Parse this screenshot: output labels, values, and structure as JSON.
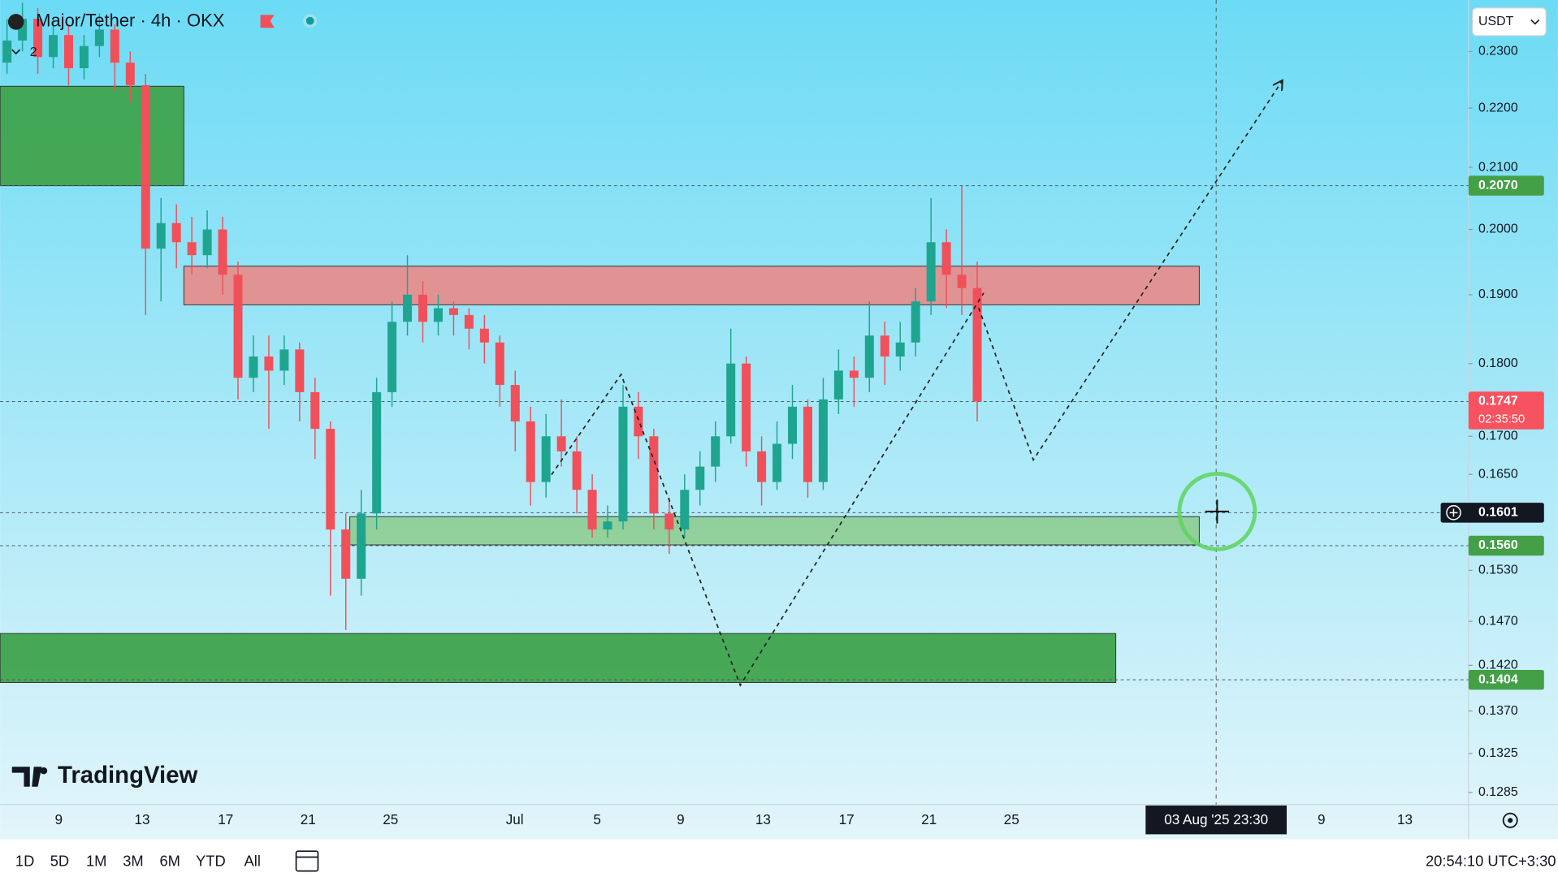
{
  "header": {
    "symbol": "Major/Tether · 4h · OKX",
    "indicator_count": "2"
  },
  "currency": "USDT",
  "chart": {
    "scale": "log",
    "ylim": [
      0.1273,
      0.2395
    ],
    "yticks": [
      {
        "value": 0.23,
        "label": "0.2300"
      },
      {
        "value": 0.22,
        "label": "0.2200"
      },
      {
        "value": 0.21,
        "label": "0.2100"
      },
      {
        "value": 0.2,
        "label": "0.2000"
      },
      {
        "value": 0.19,
        "label": "0.1900"
      },
      {
        "value": 0.18,
        "label": "0.1800"
      },
      {
        "value": 0.17,
        "label": "0.1700"
      },
      {
        "value": 0.165,
        "label": "0.1650"
      },
      {
        "value": 0.153,
        "label": "0.1530"
      },
      {
        "value": 0.147,
        "label": "0.1470"
      },
      {
        "value": 0.142,
        "label": "0.1420"
      },
      {
        "value": 0.137,
        "label": "0.1370"
      },
      {
        "value": 0.1325,
        "label": "0.1325"
      },
      {
        "value": 0.1285,
        "label": "0.1285"
      }
    ],
    "up_color": "#1fa58f",
    "down_color": "#f0505a",
    "candles": [
      [
        0.228,
        0.236,
        0.226,
        0.232
      ],
      [
        0.232,
        0.239,
        0.23,
        0.236
      ],
      [
        0.236,
        0.238,
        0.226,
        0.229
      ],
      [
        0.229,
        0.236,
        0.227,
        0.233
      ],
      [
        0.233,
        0.235,
        0.224,
        0.227
      ],
      [
        0.227,
        0.233,
        0.225,
        0.231
      ],
      [
        0.231,
        0.237,
        0.229,
        0.234
      ],
      [
        0.234,
        0.235,
        0.223,
        0.228
      ],
      [
        0.228,
        0.23,
        0.221,
        0.224
      ],
      [
        0.224,
        0.226,
        0.187,
        0.197
      ],
      [
        0.197,
        0.205,
        0.189,
        0.201
      ],
      [
        0.201,
        0.204,
        0.194,
        0.198
      ],
      [
        0.198,
        0.202,
        0.193,
        0.196
      ],
      [
        0.196,
        0.203,
        0.194,
        0.2
      ],
      [
        0.2,
        0.202,
        0.19,
        0.193
      ],
      [
        0.193,
        0.195,
        0.175,
        0.178
      ],
      [
        0.178,
        0.184,
        0.176,
        0.181
      ],
      [
        0.181,
        0.184,
        0.171,
        0.179
      ],
      [
        0.179,
        0.184,
        0.177,
        0.182
      ],
      [
        0.182,
        0.183,
        0.172,
        0.176
      ],
      [
        0.176,
        0.178,
        0.167,
        0.171
      ],
      [
        0.171,
        0.172,
        0.15,
        0.158
      ],
      [
        0.158,
        0.16,
        0.146,
        0.152
      ],
      [
        0.152,
        0.163,
        0.15,
        0.16
      ],
      [
        0.16,
        0.178,
        0.158,
        0.176
      ],
      [
        0.176,
        0.189,
        0.174,
        0.186
      ],
      [
        0.186,
        0.196,
        0.184,
        0.19
      ],
      [
        0.19,
        0.192,
        0.183,
        0.186
      ],
      [
        0.186,
        0.19,
        0.184,
        0.188
      ],
      [
        0.188,
        0.189,
        0.184,
        0.187
      ],
      [
        0.187,
        0.188,
        0.182,
        0.185
      ],
      [
        0.185,
        0.187,
        0.18,
        0.183
      ],
      [
        0.183,
        0.184,
        0.174,
        0.177
      ],
      [
        0.177,
        0.179,
        0.168,
        0.172
      ],
      [
        0.172,
        0.174,
        0.161,
        0.164
      ],
      [
        0.164,
        0.173,
        0.162,
        0.17
      ],
      [
        0.17,
        0.175,
        0.166,
        0.168
      ],
      [
        0.168,
        0.17,
        0.16,
        0.163
      ],
      [
        0.163,
        0.165,
        0.157,
        0.158
      ],
      [
        0.158,
        0.161,
        0.157,
        0.159
      ],
      [
        0.159,
        0.177,
        0.158,
        0.174
      ],
      [
        0.174,
        0.176,
        0.167,
        0.17
      ],
      [
        0.17,
        0.171,
        0.158,
        0.16
      ],
      [
        0.16,
        0.162,
        0.155,
        0.158
      ],
      [
        0.158,
        0.165,
        0.157,
        0.163
      ],
      [
        0.163,
        0.168,
        0.161,
        0.166
      ],
      [
        0.166,
        0.172,
        0.164,
        0.17
      ],
      [
        0.17,
        0.185,
        0.169,
        0.18
      ],
      [
        0.18,
        0.181,
        0.166,
        0.168
      ],
      [
        0.168,
        0.17,
        0.161,
        0.164
      ],
      [
        0.164,
        0.172,
        0.163,
        0.169
      ],
      [
        0.169,
        0.177,
        0.167,
        0.174
      ],
      [
        0.174,
        0.175,
        0.162,
        0.164
      ],
      [
        0.164,
        0.178,
        0.163,
        0.175
      ],
      [
        0.175,
        0.182,
        0.173,
        0.179
      ],
      [
        0.179,
        0.181,
        0.174,
        0.178
      ],
      [
        0.178,
        0.189,
        0.176,
        0.184
      ],
      [
        0.184,
        0.186,
        0.177,
        0.181
      ],
      [
        0.181,
        0.186,
        0.179,
        0.183
      ],
      [
        0.183,
        0.191,
        0.181,
        0.189
      ],
      [
        0.189,
        0.205,
        0.187,
        0.198
      ],
      [
        0.198,
        0.2,
        0.188,
        0.193
      ],
      [
        0.193,
        0.207,
        0.187,
        0.191
      ],
      [
        0.191,
        0.195,
        0.172,
        0.1747
      ]
    ],
    "zones": [
      {
        "top": 0.2238,
        "bottom": 0.207,
        "color": "#3fa34d"
      },
      {
        "top": 0.1943,
        "bottom": 0.1885,
        "color": "#e58e8e"
      },
      {
        "top": 0.1596,
        "bottom": 0.1561,
        "color": "#8fcf97"
      },
      {
        "top": 0.1456,
        "bottom": 0.1401,
        "color": "#3fa34d"
      }
    ],
    "levels": [
      {
        "value": 0.207,
        "label": "0.2070",
        "color": "#43a047"
      },
      {
        "value": 0.1747,
        "label": "0.1747",
        "countdown": "02:35:50",
        "color": "#f7525f"
      },
      {
        "value": 0.1601,
        "label": "0.1601",
        "color": "#131722"
      },
      {
        "value": 0.156,
        "label": "0.1560",
        "color": "#43a047"
      },
      {
        "value": 0.1404,
        "label": "0.1404",
        "color": "#43a047"
      }
    ]
  },
  "time_axis": {
    "labels": [
      "9",
      "13",
      "17",
      "21",
      "25",
      "Jul",
      "5",
      "9",
      "13",
      "17",
      "21",
      "25",
      "9",
      "13"
    ],
    "crosshair": "03 Aug '25  23:30"
  },
  "logo": "TradingView",
  "toolbar": {
    "ranges": [
      "1D",
      "5D",
      "1M",
      "3M",
      "6M",
      "YTD",
      "All"
    ],
    "clock": "20:54:10 UTC+3:30"
  }
}
